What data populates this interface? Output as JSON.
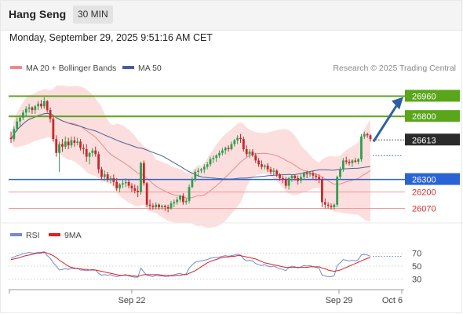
{
  "header": {
    "title": "Hang Seng",
    "timeframe": "30 MIN"
  },
  "timestamp": "Monday, September 29, 2025 9:51:16 AM CET",
  "legend": {
    "ma20": "MA 20 + Bollinger Bands",
    "ma50": "MA 50",
    "copyright": "Research © 2025 Trading Central",
    "rsi": "RSI",
    "rsi9ma": "9MA"
  },
  "colors": {
    "bullish": "#2e9e4f",
    "bearish": "#c62828",
    "bollinger": "#fbd3d3",
    "ma20": "#ee8a8a",
    "ma50": "#4a5f99",
    "resistance": "#5aa61a",
    "pivot": "#2a63d4",
    "support": "#f09a9a",
    "arrow": "#2f5fa0",
    "rsi": "#6f8bd6",
    "rsi9ma": "#e02020"
  },
  "chart_data": [
    {
      "type": "candlestick",
      "title": "Hang Seng",
      "ylim": [
        25980,
        27100
      ],
      "candles": [
        [
          26630,
          26680,
          26590,
          26620
        ],
        [
          26620,
          26720,
          26600,
          26700
        ],
        [
          26700,
          26790,
          26680,
          26760
        ],
        [
          26760,
          26810,
          26720,
          26790
        ],
        [
          26790,
          26850,
          26770,
          26830
        ],
        [
          26830,
          26880,
          26800,
          26860
        ],
        [
          26860,
          26900,
          26830,
          26870
        ],
        [
          26870,
          26880,
          26820,
          26850
        ],
        [
          26850,
          26890,
          26820,
          26880
        ],
        [
          26880,
          26920,
          26850,
          26900
        ],
        [
          26900,
          26930,
          26860,
          26880
        ],
        [
          26880,
          26950,
          26860,
          26920
        ],
        [
          26920,
          26930,
          26830,
          26850
        ],
        [
          26850,
          26870,
          26750,
          26780
        ],
        [
          26780,
          26800,
          26600,
          26620
        ],
        [
          26620,
          26650,
          26480,
          26510
        ],
        [
          26510,
          26600,
          26360,
          26580
        ],
        [
          26580,
          26620,
          26520,
          26560
        ],
        [
          26560,
          26640,
          26540,
          26600
        ],
        [
          26600,
          26630,
          26540,
          26570
        ],
        [
          26570,
          26640,
          26550,
          26610
        ],
        [
          26610,
          26640,
          26560,
          26590
        ],
        [
          26590,
          26630,
          26570,
          26600
        ],
        [
          26600,
          26620,
          26530,
          26550
        ],
        [
          26550,
          26580,
          26500,
          26540
        ],
        [
          26540,
          26580,
          26440,
          26480
        ],
        [
          26480,
          26520,
          26420,
          26510
        ],
        [
          26510,
          26550,
          26480,
          26530
        ],
        [
          26530,
          26560,
          26480,
          26500
        ],
        [
          26500,
          26520,
          26350,
          26380
        ],
        [
          26380,
          26400,
          26300,
          26320
        ],
        [
          26320,
          26370,
          26290,
          26340
        ],
        [
          26340,
          26360,
          26280,
          26300
        ],
        [
          26300,
          26330,
          26270,
          26310
        ],
        [
          26310,
          26340,
          26250,
          26280
        ],
        [
          26280,
          26310,
          26210,
          26230
        ],
        [
          26230,
          26270,
          26200,
          26260
        ],
        [
          26260,
          26300,
          26230,
          26270
        ],
        [
          26270,
          26310,
          26240,
          26280
        ],
        [
          26280,
          26300,
          26230,
          26250
        ],
        [
          26250,
          26270,
          26200,
          26230
        ],
        [
          26230,
          26260,
          26190,
          26210
        ],
        [
          26210,
          26250,
          26160,
          26200
        ],
        [
          26200,
          26440,
          26180,
          26430
        ],
        [
          26430,
          26450,
          26250,
          26270
        ],
        [
          26270,
          26280,
          26080,
          26100
        ],
        [
          26100,
          26140,
          26060,
          26090
        ],
        [
          26090,
          26110,
          26060,
          26080
        ],
        [
          26080,
          26120,
          26060,
          26100
        ],
        [
          26100,
          26110,
          26060,
          26080
        ],
        [
          26080,
          26100,
          26060,
          26090
        ],
        [
          26090,
          26100,
          26050,
          26080
        ],
        [
          26080,
          26100,
          26040,
          26070
        ],
        [
          26070,
          26130,
          26060,
          26110
        ],
        [
          26110,
          26140,
          26080,
          26120
        ],
        [
          26120,
          26160,
          26100,
          26140
        ],
        [
          26140,
          26180,
          26120,
          26170
        ],
        [
          26170,
          26190,
          26100,
          26120
        ],
        [
          26120,
          26150,
          26100,
          26130
        ],
        [
          26130,
          26260,
          26110,
          26240
        ],
        [
          26240,
          26320,
          26230,
          26300
        ],
        [
          26300,
          26380,
          26280,
          26360
        ],
        [
          26360,
          26390,
          26320,
          26370
        ],
        [
          26370,
          26390,
          26350,
          26380
        ],
        [
          26380,
          26420,
          26350,
          26400
        ],
        [
          26400,
          26440,
          26380,
          26420
        ],
        [
          26420,
          26480,
          26400,
          26460
        ],
        [
          26460,
          26490,
          26430,
          26470
        ],
        [
          26470,
          26500,
          26440,
          26490
        ],
        [
          26490,
          26530,
          26470,
          26510
        ],
        [
          26510,
          26550,
          26490,
          26530
        ],
        [
          26530,
          26560,
          26500,
          26550
        ],
        [
          26550,
          26570,
          26520,
          26540
        ],
        [
          26540,
          26600,
          26530,
          26580
        ],
        [
          26580,
          26620,
          26560,
          26610
        ],
        [
          26610,
          26650,
          26580,
          26630
        ],
        [
          26630,
          26660,
          26590,
          26620
        ],
        [
          26620,
          26640,
          26520,
          26540
        ],
        [
          26540,
          26570,
          26480,
          26500
        ],
        [
          26500,
          26540,
          26470,
          26520
        ],
        [
          26520,
          26540,
          26480,
          26490
        ],
        [
          26490,
          26510,
          26430,
          26450
        ],
        [
          26450,
          26470,
          26400,
          26420
        ],
        [
          26420,
          26450,
          26380,
          26400
        ],
        [
          26400,
          26420,
          26380,
          26410
        ],
        [
          26410,
          26430,
          26360,
          26380
        ],
        [
          26380,
          26400,
          26340,
          26360
        ],
        [
          26360,
          26390,
          26330,
          26370
        ],
        [
          26370,
          26380,
          26320,
          26340
        ],
        [
          26340,
          26350,
          26290,
          26310
        ],
        [
          26310,
          26330,
          26270,
          26300
        ],
        [
          26300,
          26320,
          26230,
          26250
        ],
        [
          26250,
          26320,
          26220,
          26310
        ],
        [
          26310,
          26340,
          26280,
          26330
        ],
        [
          26330,
          26340,
          26290,
          26310
        ],
        [
          26310,
          26330,
          26260,
          26290
        ],
        [
          26290,
          26340,
          26270,
          26320
        ],
        [
          26320,
          26360,
          26300,
          26350
        ],
        [
          26350,
          26370,
          26310,
          26340
        ],
        [
          26340,
          26360,
          26320,
          26350
        ],
        [
          26350,
          26370,
          26300,
          26330
        ],
        [
          26330,
          26350,
          26290,
          26320
        ],
        [
          26320,
          26340,
          26270,
          26300
        ],
        [
          26300,
          26320,
          26080,
          26120
        ],
        [
          26120,
          26150,
          26070,
          26100
        ],
        [
          26100,
          26120,
          26070,
          26090
        ],
        [
          26090,
          26110,
          26060,
          26080
        ],
        [
          26080,
          26110,
          26060,
          26100
        ],
        [
          26100,
          26330,
          26080,
          26320
        ],
        [
          26320,
          26400,
          26300,
          26380
        ],
        [
          26380,
          26470,
          26360,
          26450
        ],
        [
          26450,
          26480,
          26420,
          26440
        ],
        [
          26440,
          26460,
          26410,
          26430
        ],
        [
          26430,
          26460,
          26400,
          26450
        ],
        [
          26450,
          26470,
          26430,
          26440
        ],
        [
          26440,
          26470,
          26420,
          26460
        ],
        [
          26460,
          26660,
          26440,
          26640
        ],
        [
          26640,
          26680,
          26620,
          26660
        ],
        [
          26660,
          26670,
          26630,
          26650
        ],
        [
          26650,
          26660,
          26600,
          26620
        ]
      ],
      "levels": {
        "resistance": [
          26960,
          26800
        ],
        "current": 26613,
        "pivot": 26300,
        "support": [
          26200,
          26070
        ]
      },
      "xlabel_ticks": [
        "Sep 22",
        "Sep 29",
        "Oct 6"
      ]
    },
    {
      "type": "line",
      "title": "RSI",
      "ylim": [
        20,
        80
      ],
      "yticks": [
        70,
        50,
        30
      ],
      "series": [
        {
          "name": "RSI",
          "values": [
            62,
            64,
            66,
            67,
            69,
            70,
            71,
            70,
            70,
            71,
            71,
            72,
            66,
            62,
            55,
            50,
            44,
            45,
            46,
            45,
            47,
            46,
            47,
            44,
            44,
            43,
            44,
            45,
            44,
            39,
            36,
            37,
            36,
            37,
            35,
            34,
            35,
            36,
            37,
            35,
            34,
            33,
            33,
            47,
            41,
            36,
            35,
            34,
            36,
            35,
            35,
            34,
            34,
            36,
            37,
            38,
            39,
            37,
            38,
            47,
            52,
            56,
            57,
            58,
            59,
            60,
            62,
            63,
            63,
            64,
            65,
            66,
            65,
            66,
            67,
            68,
            67,
            61,
            58,
            59,
            58,
            54,
            52,
            51,
            52,
            50,
            49,
            50,
            48,
            46,
            45,
            43,
            48,
            50,
            49,
            47,
            49,
            51,
            50,
            51,
            49,
            48,
            47,
            36,
            35,
            34,
            34,
            35,
            51,
            55,
            60,
            59,
            58,
            59,
            58,
            60,
            67,
            68,
            67,
            65
          ]
        },
        {
          "name": "9MA",
          "values": [
            60,
            61,
            62,
            63,
            65,
            66,
            67,
            68,
            69,
            70,
            70,
            71,
            70,
            68,
            66,
            63,
            59,
            56,
            53,
            50,
            48,
            47,
            46,
            46,
            45,
            45,
            44,
            44,
            44,
            43,
            42,
            41,
            40,
            39,
            38,
            37,
            36,
            36,
            36,
            36,
            35,
            35,
            34,
            36,
            37,
            37,
            37,
            37,
            37,
            37,
            36,
            36,
            36,
            35,
            35,
            36,
            36,
            37,
            37,
            39,
            41,
            43,
            46,
            49,
            52,
            55,
            57,
            59,
            60,
            62,
            63,
            64,
            64,
            65,
            65,
            66,
            66,
            65,
            64,
            63,
            62,
            61,
            59,
            57,
            55,
            54,
            53,
            52,
            51,
            50,
            49,
            48,
            48,
            48,
            48,
            48,
            48,
            48,
            48,
            49,
            49,
            49,
            49,
            47,
            46,
            44,
            43,
            42,
            43,
            44,
            46,
            48,
            50,
            52,
            54,
            56,
            58,
            60,
            62,
            63
          ]
        }
      ]
    }
  ]
}
